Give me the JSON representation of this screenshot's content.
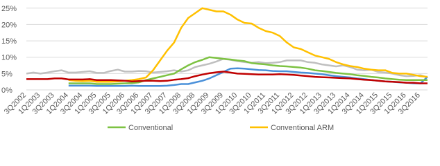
{
  "chart_data": {
    "type": "line",
    "categories": [
      "3Q2002",
      null,
      "1Q2003",
      null,
      "3Q2003",
      null,
      "1Q2004",
      null,
      "3Q2004",
      null,
      "1Q2005",
      null,
      "3Q2005",
      null,
      "1Q2006",
      null,
      "3Q2006",
      null,
      "1Q2007",
      null,
      "3Q2007",
      null,
      "1Q2008",
      null,
      "3Q2008",
      null,
      "1Q2009",
      null,
      "3Q2009",
      null,
      "1Q2010",
      null,
      "3Q2010",
      null,
      "1Q2011",
      null,
      "3Q2011",
      null,
      "1Q2012",
      null,
      "3Q2012",
      null,
      "1Q2013",
      null,
      "3Q2013",
      null,
      "1Q2014",
      null,
      "3Q2014",
      null,
      "1Q2015",
      null,
      "3Q2015",
      null,
      "1Q2016",
      null,
      "3Q2016",
      null
    ],
    "series": [
      {
        "color": "#bfbfbf",
        "values": [
          5,
          5.3,
          5,
          5.3,
          5.7,
          6,
          5.3,
          5.3,
          5.5,
          5.7,
          5.2,
          5.2,
          5.8,
          6.2,
          5.6,
          5.6,
          5.8,
          5.7,
          5.3,
          5.5,
          5.7,
          6,
          5.6,
          6,
          7,
          7.5,
          8,
          8.7,
          9.5,
          9.2,
          8.8,
          8.5,
          8.3,
          8.5,
          8.2,
          8.3,
          8.5,
          9,
          9,
          9,
          8.5,
          8.3,
          7.8,
          7.5,
          7.2,
          7.5,
          7,
          6.2,
          6,
          6.2,
          5.5,
          5.3,
          5,
          4.5,
          4.2,
          4.3,
          4.5,
          3.8
        ]
      },
      {
        "color": "#4a90d9",
        "values": [
          null,
          null,
          null,
          null,
          null,
          null,
          1.3,
          1.3,
          1.3,
          1.3,
          1.2,
          1.2,
          1.2,
          1.2,
          1.2,
          1.3,
          1.2,
          1.2,
          1.2,
          1.2,
          1.3,
          1.5,
          1.8,
          1.8,
          2.3,
          2.8,
          3.5,
          4.5,
          5.5,
          6.5,
          6.6,
          6.5,
          6.3,
          6.1,
          6,
          5.8,
          5.7,
          5.7,
          5.5,
          5.3,
          5.2,
          5,
          4.8,
          4.5,
          4.2,
          4,
          3.8,
          3.5,
          3.3,
          3,
          2.8,
          2.6,
          2.5,
          2.3,
          2.2,
          2,
          2,
          4
        ]
      },
      {
        "name": "Conventional",
        "color": "#7dc242",
        "values": [
          null,
          null,
          null,
          null,
          null,
          null,
          2,
          2,
          2,
          2,
          1.8,
          1.8,
          1.8,
          1.9,
          2,
          2.1,
          2.3,
          3,
          3.5,
          4,
          4.5,
          5,
          6.3,
          7.5,
          8.5,
          9.2,
          10,
          9.8,
          9.5,
          9.3,
          9,
          8.8,
          8.2,
          8,
          7.8,
          7.5,
          7.3,
          7.2,
          7,
          6.8,
          6.5,
          6,
          5.8,
          5.5,
          5.2,
          5,
          4.8,
          4.5,
          4.3,
          4,
          3.8,
          3.5,
          3.3,
          3.1,
          3,
          3,
          3,
          3
        ]
      },
      {
        "name": "Conventional ARM",
        "color": "#ffc000",
        "values": [
          null,
          null,
          null,
          null,
          null,
          null,
          3,
          2.8,
          2.7,
          2.8,
          2.5,
          2.5,
          2.5,
          2.6,
          2.8,
          3,
          3.3,
          3.8,
          6,
          9,
          12,
          14.5,
          19,
          22,
          23.5,
          25,
          24.5,
          24,
          24,
          23,
          21.5,
          20.5,
          20.3,
          19,
          18,
          17.5,
          16.5,
          14.5,
          13,
          12.5,
          11.5,
          10.5,
          10,
          9.5,
          8.5,
          7.8,
          7.3,
          7,
          6.5,
          6.2,
          6,
          6,
          5.2,
          5,
          5,
          4.6,
          4.2,
          4
        ]
      },
      {
        "color": "#c00000",
        "values": [
          3.3,
          3.3,
          3.3,
          3.3,
          3.5,
          3.5,
          3.2,
          3.2,
          3.2,
          3.3,
          3,
          3,
          3,
          2.9,
          2.8,
          2.6,
          2.7,
          2.8,
          2.8,
          2.7,
          2.8,
          3.1,
          3.3,
          3.6,
          4.2,
          4.7,
          5.1,
          5.4,
          5.6,
          5.3,
          5,
          4.9,
          4.8,
          4.7,
          4.7,
          4.7,
          4.8,
          4.7,
          4.6,
          4.4,
          4.2,
          4,
          3.9,
          3.8,
          3.7,
          3.6,
          3.5,
          3.3,
          3.1,
          3,
          2.8,
          2.6,
          2.5,
          2.4,
          2.2,
          2.2,
          2,
          2
        ]
      }
    ],
    "ylim": [
      0,
      25.8
    ],
    "yticks": [
      {
        "value": 0,
        "label": "0%"
      },
      {
        "value": 5,
        "label": "5%"
      },
      {
        "value": 10,
        "label": "10%"
      },
      {
        "value": 15,
        "label": "15%"
      },
      {
        "value": 20,
        "label": "20%"
      },
      {
        "value": 25,
        "label": "25%"
      }
    ],
    "grid": true
  }
}
